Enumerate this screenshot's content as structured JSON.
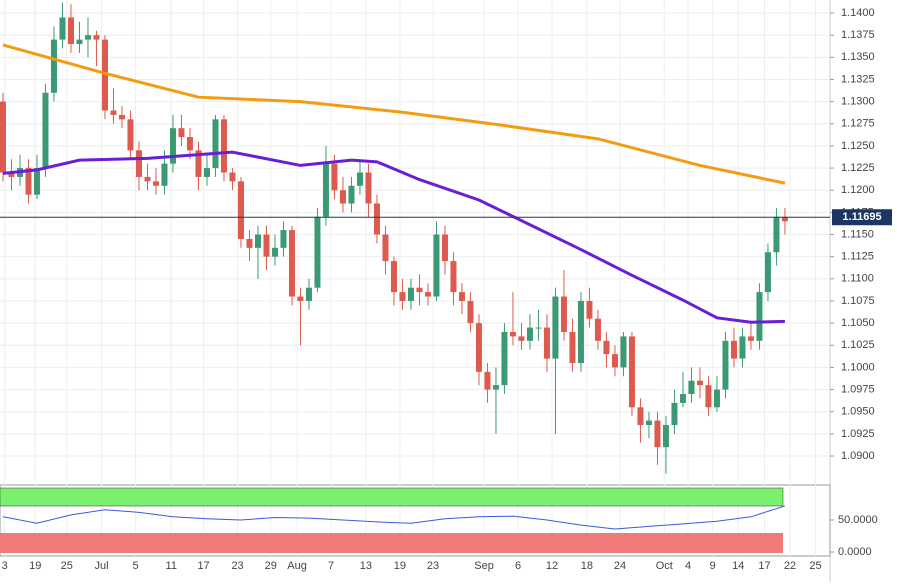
{
  "chart_data": [
    {
      "type": "candlestick",
      "open": [
        1.13,
        1.122,
        1.1215,
        1.1225,
        1.1195,
        1.1225,
        1.131,
        1.137,
        1.1395,
        1.1365,
        1.137,
        1.1375,
        1.137,
        1.129,
        1.1285,
        1.128,
        1.1245,
        1.1215,
        1.121,
        1.1205,
        1.123,
        1.127,
        1.126,
        1.1245,
        1.1215,
        1.1225,
        1.128,
        1.122,
        1.121,
        1.1145,
        1.1135,
        1.115,
        1.1125,
        1.1135,
        1.1155,
        1.108,
        1.1075,
        1.109,
        1.117,
        1.123,
        1.12,
        1.1185,
        1.1205,
        1.122,
        1.1185,
        1.115,
        1.112,
        1.1085,
        1.1075,
        1.109,
        1.1085,
        1.108,
        1.115,
        1.112,
        1.1085,
        1.1075,
        1.105,
        1.0995,
        1.0975,
        1.098,
        1.104,
        1.1035,
        1.103,
        1.1045,
        1.1045,
        1.101,
        1.108,
        1.104,
        1.1005,
        1.1075,
        1.1055,
        1.103,
        1.1015,
        1.1,
        1.1035,
        1.0955,
        1.0935,
        1.094,
        1.091,
        1.0935,
        1.096,
        1.097,
        1.0985,
        1.098,
        1.0955,
        1.0975,
        1.103,
        1.101,
        1.1035,
        1.103,
        1.1085,
        1.113,
        1.117
      ],
      "high": [
        1.131,
        1.1235,
        1.124,
        1.1235,
        1.124,
        1.132,
        1.1385,
        1.1412,
        1.141,
        1.139,
        1.1395,
        1.138,
        1.1375,
        1.1315,
        1.1295,
        1.129,
        1.1255,
        1.123,
        1.1225,
        1.1245,
        1.1285,
        1.1285,
        1.127,
        1.1255,
        1.124,
        1.1285,
        1.1285,
        1.1225,
        1.1215,
        1.1155,
        1.116,
        1.116,
        1.115,
        1.1165,
        1.116,
        1.109,
        1.11,
        1.118,
        1.125,
        1.124,
        1.1215,
        1.1215,
        1.1235,
        1.123,
        1.1195,
        1.116,
        1.1125,
        1.11,
        1.11,
        1.1105,
        1.1095,
        1.1165,
        1.116,
        1.113,
        1.1095,
        1.1085,
        1.106,
        1.1005,
        1.1,
        1.105,
        1.1085,
        1.105,
        1.106,
        1.1065,
        1.106,
        1.109,
        1.111,
        1.1055,
        1.1085,
        1.109,
        1.1065,
        1.104,
        1.1025,
        1.104,
        1.104,
        1.0965,
        1.095,
        1.095,
        1.0945,
        1.0975,
        1.0995,
        1.1,
        1.1,
        1.099,
        1.099,
        1.104,
        1.1045,
        1.1045,
        1.105,
        1.1095,
        1.114,
        1.118,
        1.118
      ],
      "low": [
        1.121,
        1.12,
        1.1205,
        1.1185,
        1.119,
        1.1215,
        1.13,
        1.136,
        1.1355,
        1.1355,
        1.135,
        1.134,
        1.128,
        1.1275,
        1.127,
        1.1235,
        1.12,
        1.12,
        1.1195,
        1.1195,
        1.122,
        1.125,
        1.1235,
        1.12,
        1.1205,
        1.1215,
        1.121,
        1.12,
        1.1135,
        1.112,
        1.11,
        1.111,
        1.1115,
        1.1125,
        1.107,
        1.1025,
        1.1065,
        1.1085,
        1.116,
        1.119,
        1.1175,
        1.1175,
        1.1195,
        1.117,
        1.114,
        1.1105,
        1.107,
        1.1065,
        1.1065,
        1.107,
        1.107,
        1.1075,
        1.1105,
        1.107,
        1.106,
        1.104,
        1.098,
        1.096,
        1.0925,
        1.097,
        1.1025,
        1.102,
        1.102,
        1.103,
        1.0995,
        1.0925,
        1.103,
        1.0995,
        1.0995,
        1.1045,
        1.102,
        1.1,
        1.099,
        1.099,
        1.0945,
        1.0915,
        1.092,
        1.089,
        1.088,
        1.0925,
        1.0955,
        1.096,
        1.0965,
        1.0945,
        1.095,
        1.0965,
        1.1,
        1.1,
        1.102,
        1.102,
        1.1075,
        1.1115,
        1.115
      ],
      "close": [
        1.122,
        1.1215,
        1.1225,
        1.1195,
        1.1225,
        1.131,
        1.137,
        1.1395,
        1.1365,
        1.137,
        1.1375,
        1.137,
        1.129,
        1.1285,
        1.128,
        1.1245,
        1.1215,
        1.121,
        1.1205,
        1.123,
        1.127,
        1.126,
        1.1245,
        1.1215,
        1.1225,
        1.128,
        1.122,
        1.121,
        1.1145,
        1.1135,
        1.115,
        1.1125,
        1.1135,
        1.1155,
        1.108,
        1.1075,
        1.109,
        1.117,
        1.123,
        1.12,
        1.1185,
        1.1205,
        1.122,
        1.1185,
        1.115,
        1.112,
        1.1085,
        1.1075,
        1.109,
        1.1085,
        1.108,
        1.115,
        1.112,
        1.1085,
        1.1075,
        1.105,
        1.0995,
        1.0975,
        1.098,
        1.104,
        1.1035,
        1.103,
        1.1045,
        1.1045,
        1.101,
        1.108,
        1.104,
        1.1005,
        1.1075,
        1.1055,
        1.103,
        1.1015,
        1.1,
        1.1035,
        1.0955,
        1.0935,
        1.094,
        1.091,
        1.0935,
        1.096,
        1.097,
        1.0985,
        1.098,
        1.0955,
        1.0975,
        1.103,
        1.101,
        1.1035,
        1.103,
        1.1085,
        1.113,
        1.117,
        1.1165
      ],
      "up_color": "#3b9a74",
      "down_color": "#dc5a4e",
      "lines": [
        {
          "color": "#f39c12",
          "x": [
            0,
            12,
            23,
            35,
            47,
            59,
            70,
            82,
            92
          ],
          "values": [
            1.1364,
            1.1332,
            1.1305,
            1.13,
            1.1288,
            1.1273,
            1.1258,
            1.1228,
            1.1208
          ]
        },
        {
          "color": "#6a1fd6",
          "x": [
            0,
            4,
            9,
            17,
            27,
            35,
            41,
            44,
            49,
            56,
            62,
            68,
            74,
            80,
            84,
            88,
            92
          ],
          "values": [
            1.1219,
            1.1223,
            1.1234,
            1.1236,
            1.1243,
            1.1228,
            1.1234,
            1.1232,
            1.1212,
            1.1189,
            1.1161,
            1.1133,
            1.1104,
            1.1076,
            1.1056,
            1.1051,
            1.1052
          ]
        }
      ],
      "last_price": 1.11695,
      "last_price_color": "#1c3566",
      "xlim": [
        -0.35,
        97.3
      ],
      "ylim": [
        1.08752,
        1.14147
      ],
      "yticks": [
        {
          "value": 1.09,
          "label": "1.0900"
        },
        {
          "value": 1.0925,
          "label": "1.0925"
        },
        {
          "value": 1.095,
          "label": "1.0950"
        },
        {
          "value": 1.0975,
          "label": "1.0975"
        },
        {
          "value": 1.1,
          "label": "1.1000"
        },
        {
          "value": 1.1025,
          "label": "1.1025"
        },
        {
          "value": 1.105,
          "label": "1.1050"
        },
        {
          "value": 1.1075,
          "label": "1.1075"
        },
        {
          "value": 1.11,
          "label": "1.1100"
        },
        {
          "value": 1.1125,
          "label": "1.1125"
        },
        {
          "value": 1.115,
          "label": "1.1150"
        },
        {
          "value": 1.1175,
          "label": "1.1175"
        },
        {
          "value": 1.12,
          "label": "1.1200"
        },
        {
          "value": 1.1225,
          "label": "1.1225"
        },
        {
          "value": 1.125,
          "label": "1.1250"
        },
        {
          "value": 1.1275,
          "label": "1.1275"
        },
        {
          "value": 1.13,
          "label": "1.1300"
        },
        {
          "value": 1.1325,
          "label": "1.1325"
        },
        {
          "value": 1.135,
          "label": "1.1350"
        },
        {
          "value": 1.1375,
          "label": "1.1375"
        },
        {
          "value": 1.14,
          "label": "1.1400"
        }
      ],
      "xticks": [
        {
          "value": 0.2,
          "label": "3"
        },
        {
          "value": 3.8,
          "label": "19"
        },
        {
          "value": 7.5,
          "label": "25"
        },
        {
          "value": 11.6,
          "label": "Jul"
        },
        {
          "value": 15.6,
          "label": "5"
        },
        {
          "value": 19.8,
          "label": "11"
        },
        {
          "value": 23.6,
          "label": "17"
        },
        {
          "value": 27.6,
          "label": "23"
        },
        {
          "value": 31.5,
          "label": "29"
        },
        {
          "value": 34.6,
          "label": "Aug"
        },
        {
          "value": 38.6,
          "label": "7"
        },
        {
          "value": 42.7,
          "label": "13"
        },
        {
          "value": 46.7,
          "label": "19"
        },
        {
          "value": 50.6,
          "label": "23"
        },
        {
          "value": 56.6,
          "label": "Sep"
        },
        {
          "value": 60.6,
          "label": "6"
        },
        {
          "value": 64.6,
          "label": "12"
        },
        {
          "value": 68.7,
          "label": "18"
        },
        {
          "value": 72.6,
          "label": "24"
        },
        {
          "value": 77.8,
          "label": "Oct"
        },
        {
          "value": 80.6,
          "label": "4"
        },
        {
          "value": 83.5,
          "label": "9"
        },
        {
          "value": 86.5,
          "label": "14"
        },
        {
          "value": 89.6,
          "label": "17"
        },
        {
          "value": 92.6,
          "label": "22"
        },
        {
          "value": 95.6,
          "label": "25"
        }
      ],
      "grid": true
    },
    {
      "type": "line",
      "color": "#3a5bd9",
      "x": [
        0,
        4,
        8,
        12,
        16,
        20,
        24,
        28,
        32,
        36,
        40,
        44,
        48,
        52,
        56,
        60,
        64,
        68,
        72,
        76,
        80,
        84,
        88,
        92
      ],
      "values": [
        55,
        45,
        58,
        66,
        62,
        55,
        52,
        50,
        54,
        53,
        50,
        47,
        45,
        52,
        55,
        56,
        50,
        42,
        36,
        40,
        44,
        48,
        55,
        72
      ],
      "upper_zone_color": "#7af06e",
      "lower_zone_color": "#f07a7a",
      "ylim": [
        0,
        100
      ],
      "yticks": [
        {
          "value": 50,
          "label": "50.0000"
        },
        {
          "value": 0,
          "label": "0.0000"
        }
      ]
    }
  ]
}
